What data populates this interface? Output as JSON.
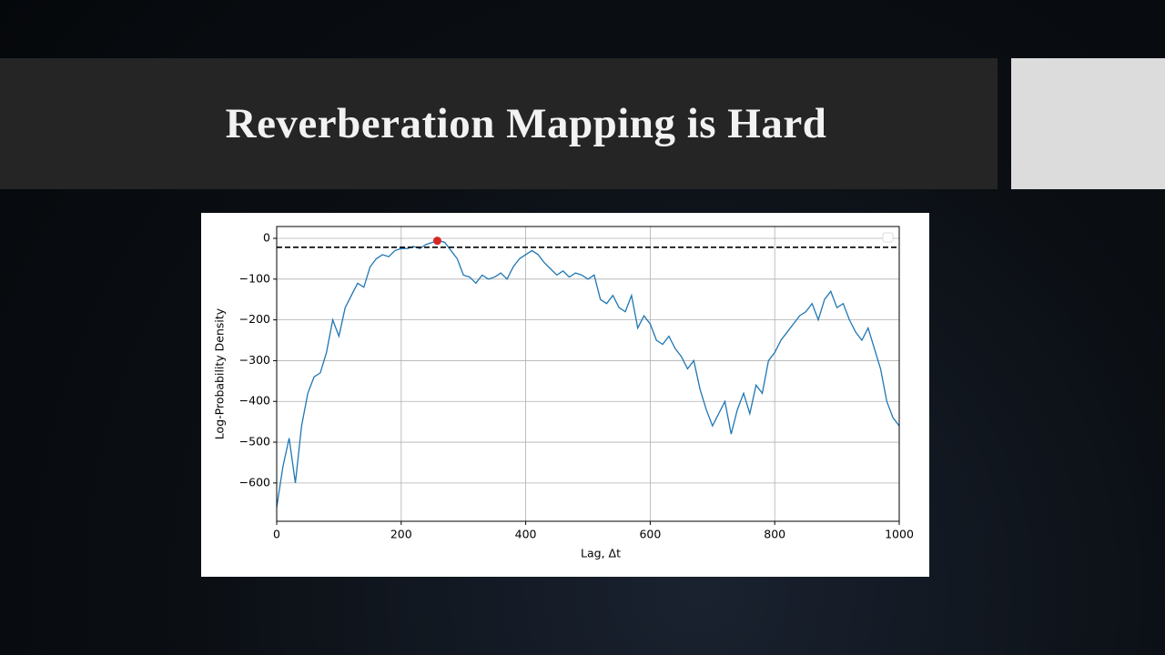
{
  "title": "Reverberation Mapping is Hard",
  "chart_data": {
    "type": "line",
    "xlabel": "Lag, Δt",
    "ylabel": "Log-Probability Density",
    "color": "#1f77b4",
    "x": [
      0,
      10,
      20,
      30,
      40,
      50,
      60,
      70,
      80,
      90,
      100,
      110,
      120,
      130,
      140,
      150,
      160,
      170,
      180,
      190,
      200,
      210,
      220,
      230,
      240,
      250,
      260,
      270,
      280,
      290,
      300,
      310,
      320,
      330,
      340,
      350,
      360,
      370,
      380,
      390,
      400,
      410,
      420,
      430,
      440,
      450,
      460,
      470,
      480,
      490,
      500,
      510,
      520,
      530,
      540,
      550,
      560,
      570,
      580,
      590,
      600,
      610,
      620,
      630,
      640,
      650,
      660,
      670,
      680,
      690,
      700,
      710,
      720,
      730,
      740,
      750,
      760,
      770,
      780,
      790,
      800,
      810,
      820,
      830,
      840,
      850,
      860,
      870,
      880,
      890,
      900,
      910,
      920,
      930,
      940,
      950,
      960,
      970,
      980,
      990,
      1000
    ],
    "values": [
      -660,
      -560,
      -490,
      -600,
      -460,
      -380,
      -340,
      -330,
      -280,
      -200,
      -240,
      -170,
      -140,
      -110,
      -120,
      -70,
      -50,
      -40,
      -45,
      -30,
      -25,
      -25,
      -20,
      -25,
      -15,
      -10,
      -5,
      -10,
      -30,
      -50,
      -90,
      -95,
      -110,
      -90,
      -100,
      -95,
      -85,
      -100,
      -70,
      -50,
      -40,
      -30,
      -40,
      -60,
      -75,
      -90,
      -80,
      -95,
      -85,
      -90,
      -100,
      -90,
      -150,
      -160,
      -140,
      -170,
      -180,
      -140,
      -220,
      -190,
      -210,
      -250,
      -260,
      -240,
      -270,
      -290,
      -320,
      -300,
      -370,
      -420,
      -460,
      -430,
      -400,
      -480,
      -420,
      -380,
      -430,
      -360,
      -380,
      -300,
      -280,
      -250,
      -230,
      -210,
      -190,
      -180,
      -160,
      -200,
      -150,
      -130,
      -170,
      -160,
      -200,
      -230,
      -250,
      -220,
      -270,
      -320,
      -400,
      -440,
      -460
    ],
    "hline": -22,
    "marker": {
      "x": 258,
      "y": -6,
      "color": "#d62728"
    },
    "xlim": [
      0,
      1000
    ],
    "ylim": [
      -694,
      29
    ],
    "xticks": [
      0,
      200,
      400,
      600,
      800,
      1000
    ],
    "yticks": [
      {
        "value": -600,
        "label": "−600"
      },
      {
        "value": -500,
        "label": "−500"
      },
      {
        "value": -400,
        "label": "−400"
      },
      {
        "value": -300,
        "label": "−300"
      },
      {
        "value": -200,
        "label": "−200"
      },
      {
        "value": -100,
        "label": "−100"
      },
      0
    ],
    "grid": true
  }
}
